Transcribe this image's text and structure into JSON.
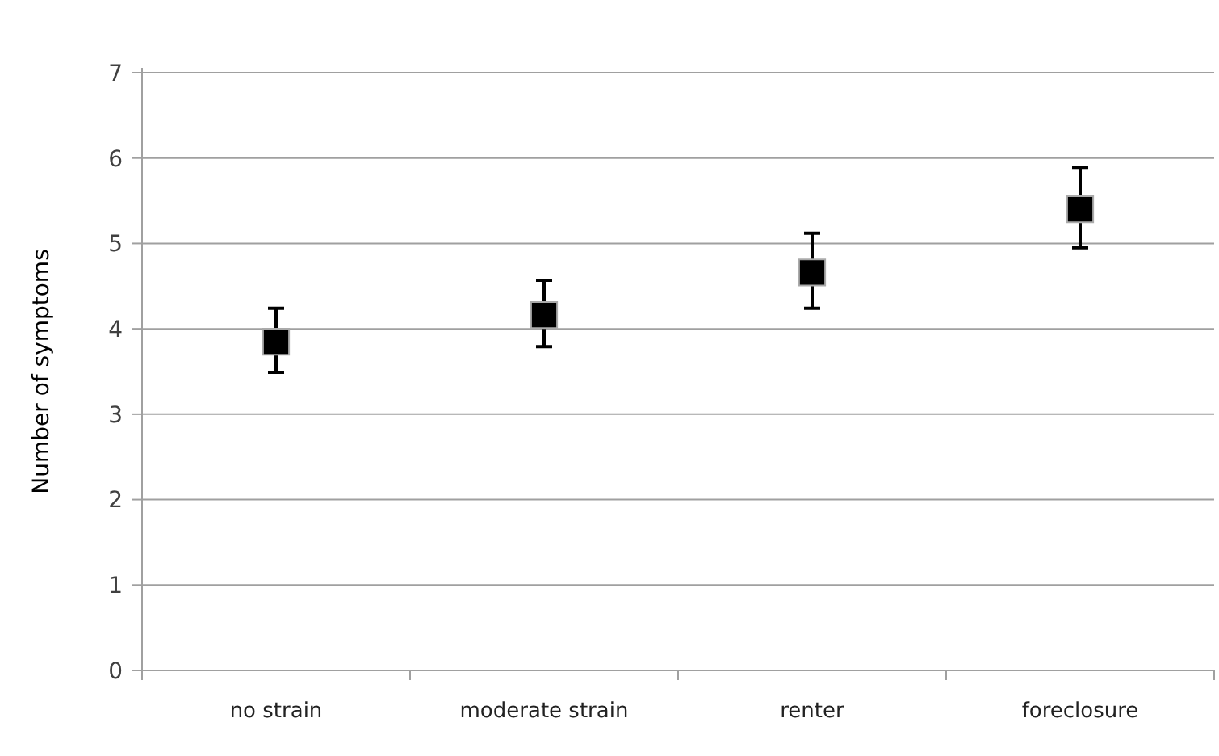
{
  "chart_data": {
    "type": "scatter",
    "ylabel": "Number of symptoms",
    "categories": [
      "no strain",
      "moderate strain",
      "renter",
      "foreclosure"
    ],
    "series": [
      {
        "color": "#000000",
        "values": [
          3.85,
          4.16,
          4.66,
          5.4
        ],
        "errors": [
          [
            3.49,
            4.24
          ],
          [
            3.79,
            4.57
          ],
          [
            4.24,
            5.12
          ],
          [
            4.95,
            5.89
          ]
        ]
      }
    ],
    "ylim": [
      0,
      7
    ],
    "yticks": [
      0,
      1,
      2,
      3,
      4,
      5,
      6,
      7
    ],
    "grid": "y",
    "marker": "square"
  }
}
